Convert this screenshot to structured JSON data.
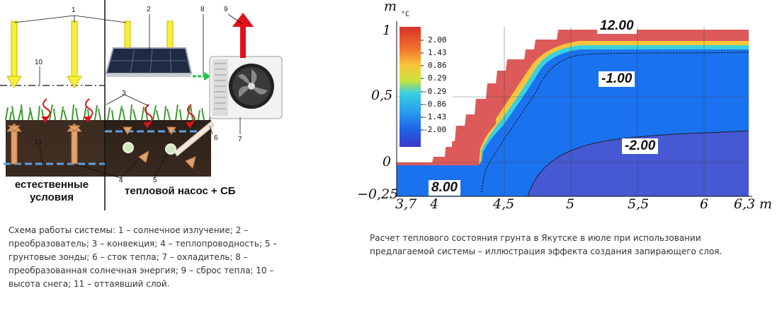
{
  "left_figure": {
    "numbers": [
      "1",
      "2",
      "3",
      "4",
      "5",
      "6",
      "7",
      "8",
      "9",
      "10",
      "11"
    ],
    "label_natural": "естественные условия",
    "label_system": "тепловой насос + СБ",
    "caption": "Схема работы системы: 1 – солнечное излучение; 2 – преобразователь; 3 – конвекция; 4 – теплопроводность; 5 – грунтовые зонды; 6 – сток тепла; 7 – охладитель; 8 – преобразованная солнечная энергия; 9 – сброс тепла; 10 – высота снега; 11 – оттаявший слой."
  },
  "right_figure": {
    "y_axis_unit": "m",
    "x_axis_unit": "m",
    "y_ticks": [
      "1",
      "0,5",
      "0",
      "−0,25"
    ],
    "x_ticks": [
      "3,7",
      "4",
      "4,5",
      "5",
      "5,5",
      "6",
      "6,3"
    ],
    "legend_unit": "°C",
    "legend_values": [
      "2.00",
      "1.43",
      "0.86",
      "0.29",
      "-0.29",
      "-0.86",
      "-1.43",
      "-2.00"
    ],
    "legend_colors": [
      "#d9322a",
      "#f0702a",
      "#f8c63a",
      "#c8e23c",
      "#3ad0e0",
      "#2aa0f0",
      "#1e64e8",
      "#3a3acb"
    ],
    "isotherms": [
      "12.00",
      "-1.00",
      "-2.00",
      "8.00"
    ],
    "caption": "Расчет теплового состояния грунта в Якутске в июле при использовании предлагаемой системы – иллюстрация эффекта создания запирающего слоя."
  }
}
